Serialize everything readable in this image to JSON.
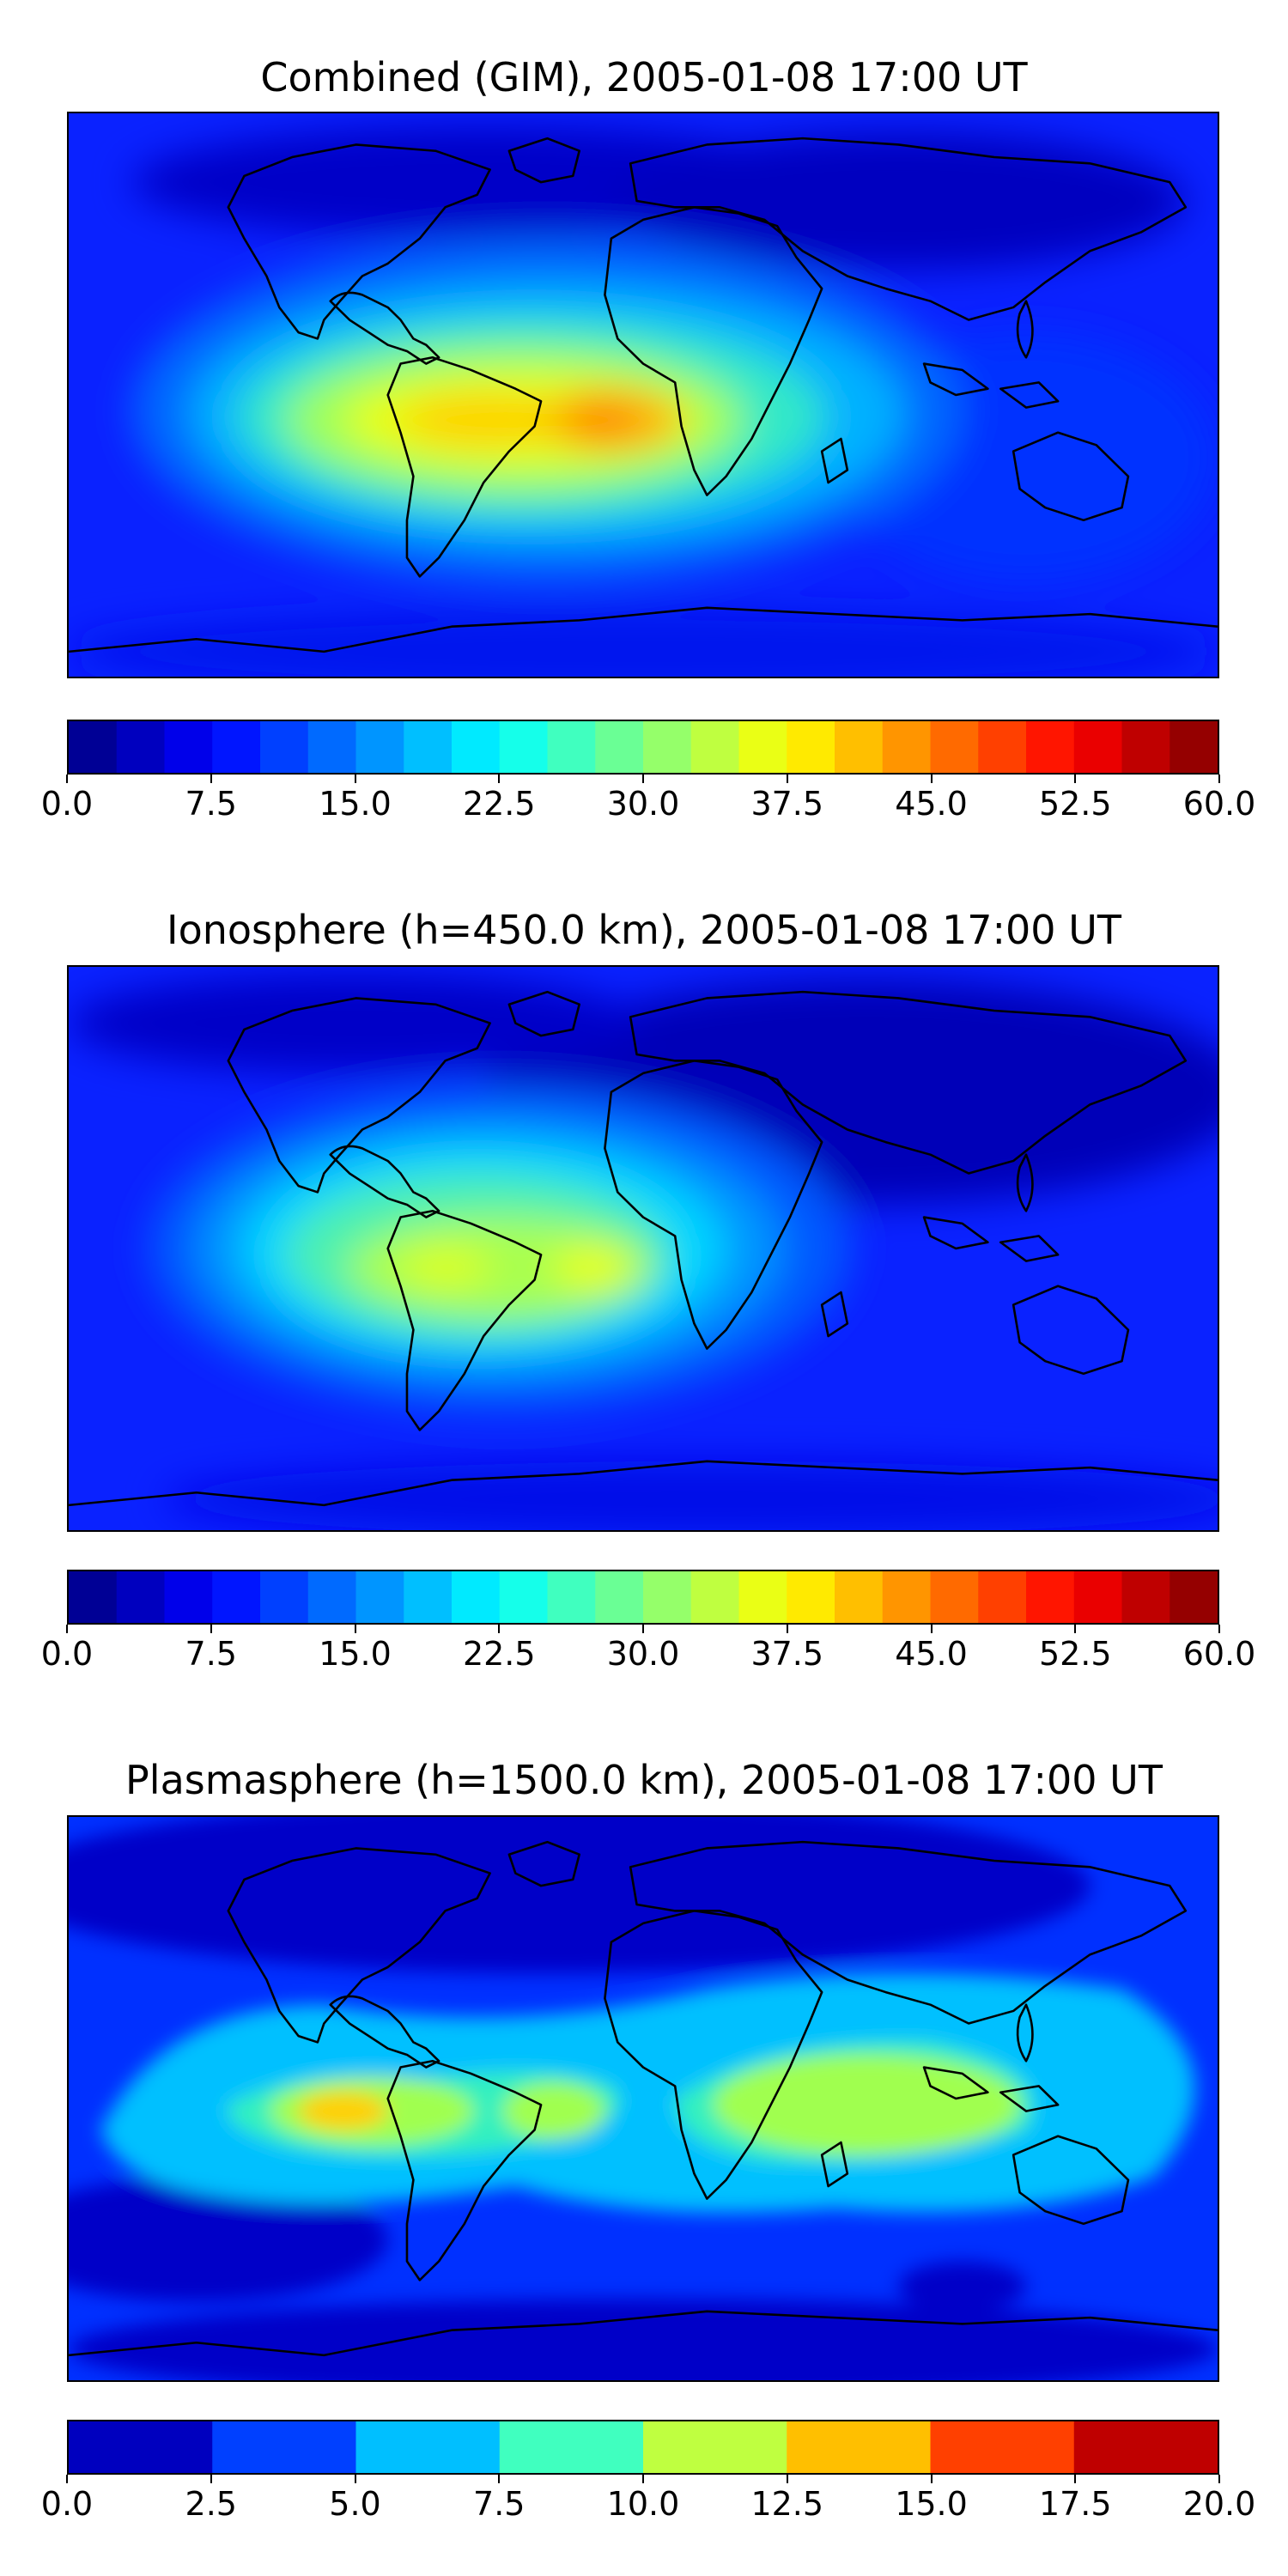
{
  "panels": [
    {
      "title": "Combined (GIM), 2005-01-08 17:00 UT",
      "colorbar": {
        "vmin": 0.0,
        "vmax": 60.0,
        "levels": 24,
        "ticks": [
          "0.0",
          "7.5",
          "15.0",
          "22.5",
          "30.0",
          "37.5",
          "45.0",
          "52.5",
          "60.0"
        ]
      }
    },
    {
      "title": "Ionosphere  (h=450.0 km), 2005-01-08 17:00 UT",
      "colorbar": {
        "vmin": 0.0,
        "vmax": 60.0,
        "levels": 24,
        "ticks": [
          "0.0",
          "7.5",
          "15.0",
          "22.5",
          "30.0",
          "37.5",
          "45.0",
          "52.5",
          "60.0"
        ]
      }
    },
    {
      "title": "Plasmasphere (h=1500.0 km), 2005-01-08 17:00 UT",
      "colorbar": {
        "vmin": 0.0,
        "vmax": 20.0,
        "levels": 8,
        "ticks": [
          "0.0",
          "2.5",
          "5.0",
          "7.5",
          "10.0",
          "12.5",
          "15.0",
          "17.5",
          "20.0"
        ]
      }
    }
  ],
  "colormap": "jet",
  "coastline_color": "#000000"
}
